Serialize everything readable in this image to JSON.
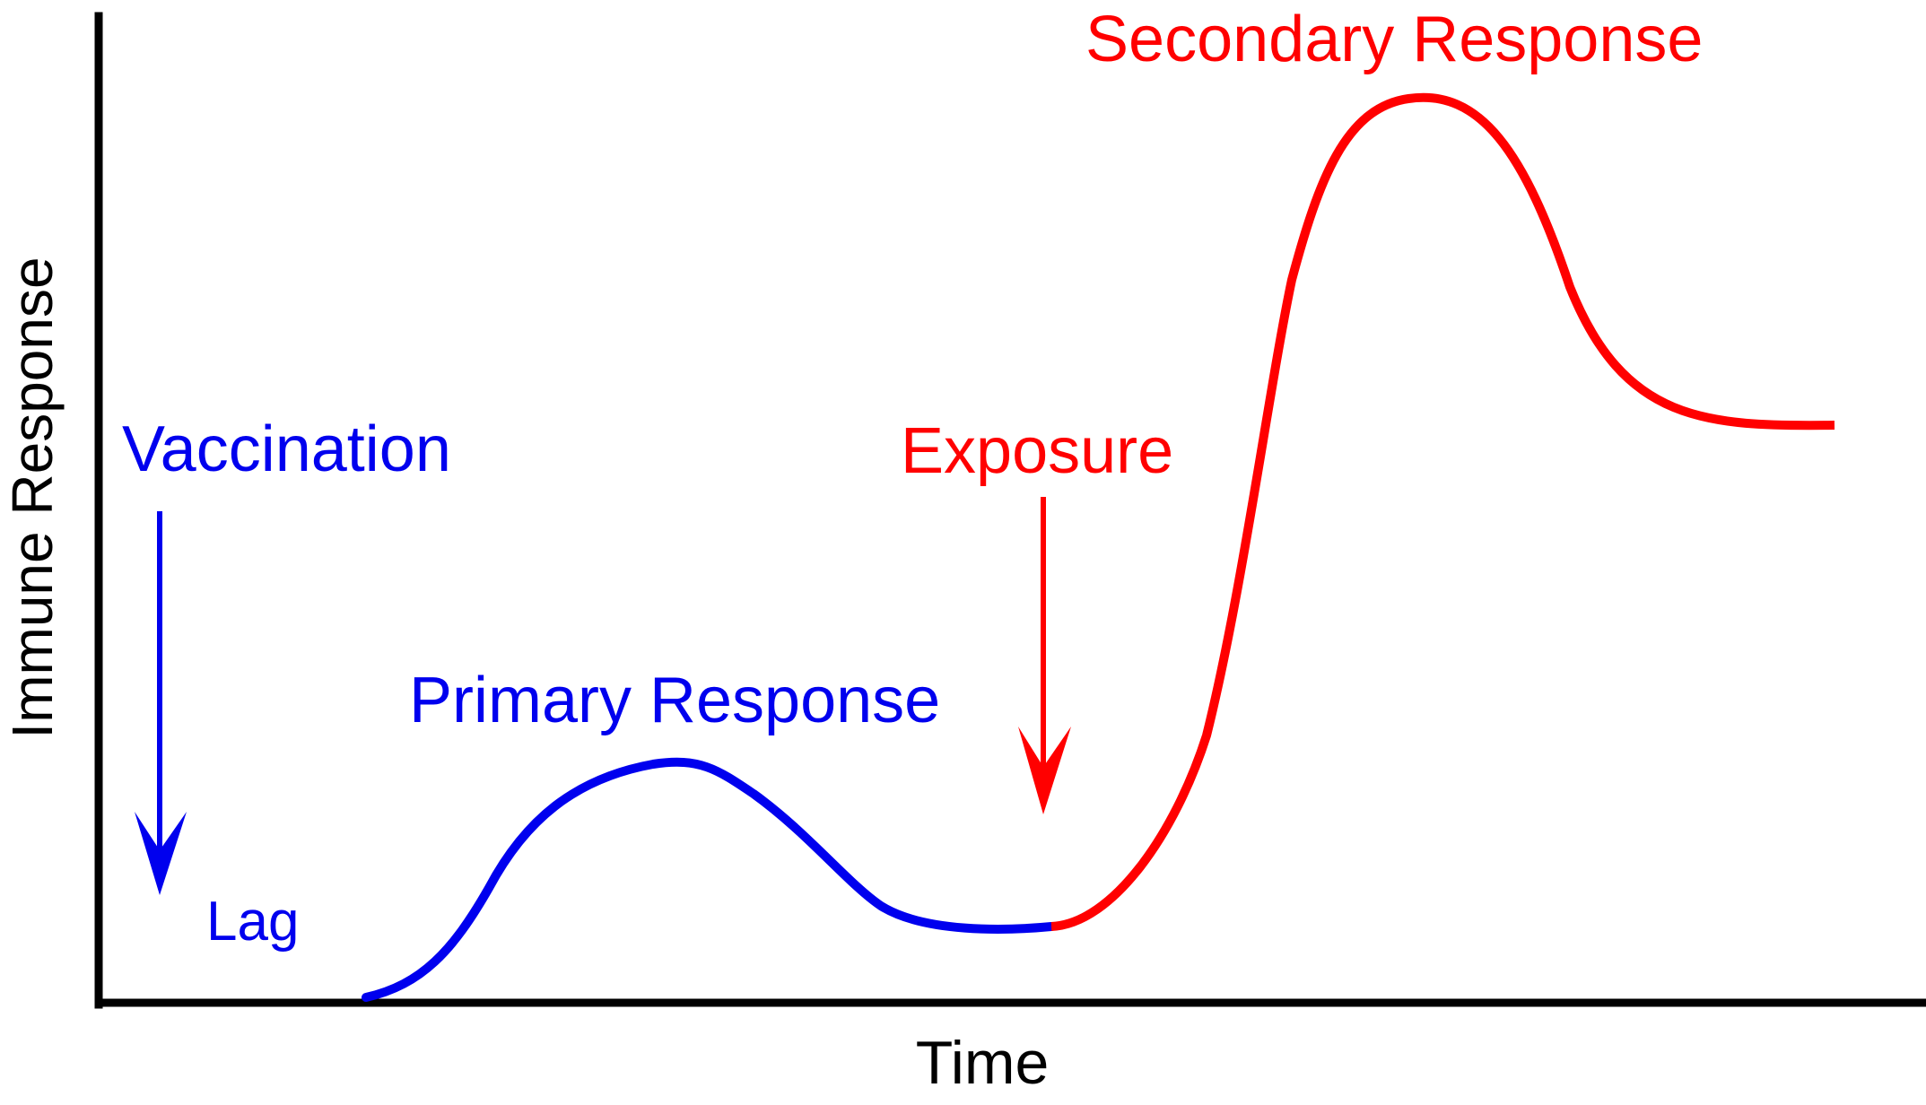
{
  "axes": {
    "x_label": "Time",
    "y_label": "Immune Response"
  },
  "labels": {
    "vaccination": "Vaccination",
    "lag": "Lag",
    "primary": "Primary Response",
    "exposure": "Exposure",
    "secondary": "Secondary Response"
  },
  "colors": {
    "primary": "#0000ee",
    "secondary": "#ff0000",
    "axis": "#000000"
  }
}
